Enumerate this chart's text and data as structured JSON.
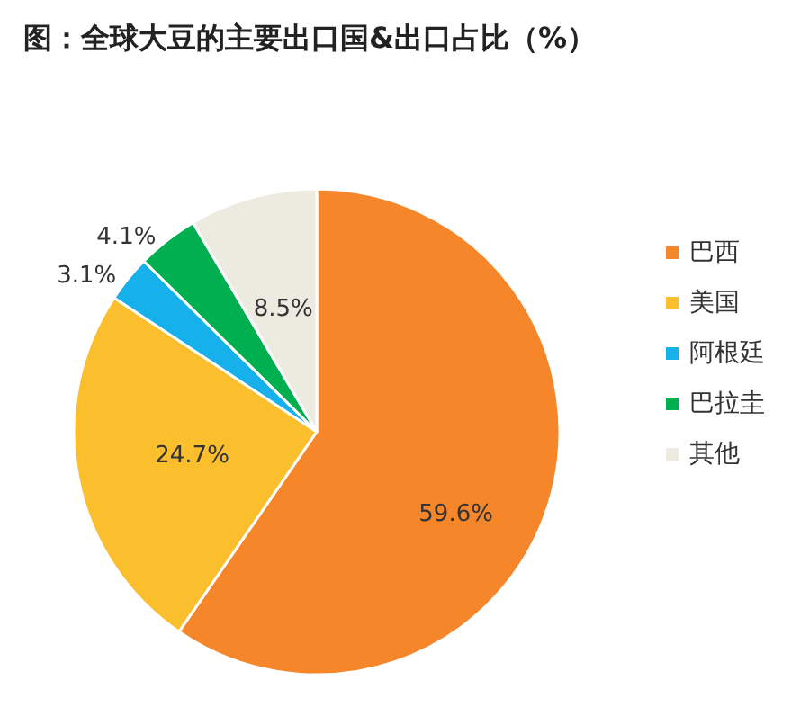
{
  "chart_data": {
    "type": "pie",
    "title": "图：全球大豆的主要出口国&出口占比（%）",
    "categories": [
      "巴西",
      "美国",
      "阿根廷",
      "巴拉圭",
      "其他"
    ],
    "values": [
      59.6,
      24.7,
      3.1,
      4.1,
      8.5
    ],
    "colors": [
      "#f5862a",
      "#fbbf2e",
      "#16b0ea",
      "#00b050",
      "#edebe0"
    ],
    "value_labels": [
      "59.6%",
      "24.7%",
      "3.1%",
      "4.1%",
      "8.5%"
    ],
    "legend": "right"
  }
}
